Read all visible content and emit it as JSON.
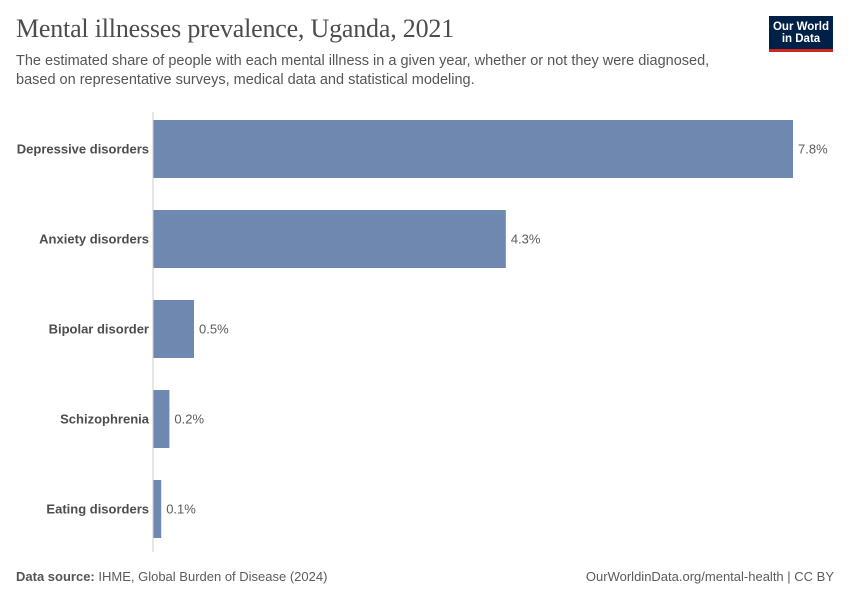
{
  "header": {
    "title": "Mental illnesses prevalence, Uganda, 2021",
    "subtitle": "The estimated share of people with each mental illness in a given year, whether or not they were diagnosed, based on representative surveys, medical data and statistical modeling."
  },
  "logo": {
    "line1": "Our World",
    "line2": "in Data"
  },
  "footer": {
    "source_label": "Data source:",
    "source_text": "IHME, Global Burden of Disease (2024)",
    "link_text": "OurWorldinData.org/mental-health | CC BY"
  },
  "colors": {
    "bar": "#6f88b0",
    "axis": "#cccccc",
    "label": "#4d4d4d",
    "value_label": "#5b5b5b"
  },
  "chart_data": {
    "type": "bar",
    "orientation": "horizontal",
    "categories": [
      "Depressive disorders",
      "Anxiety disorders",
      "Bipolar disorder",
      "Schizophrenia",
      "Eating disorders"
    ],
    "values": [
      7.8,
      4.3,
      0.5,
      0.2,
      0.1
    ],
    "value_labels": [
      "7.8%",
      "4.3%",
      "0.5%",
      "0.2%",
      "0.1%"
    ],
    "unit": "%",
    "xlim": [
      0,
      7.8
    ],
    "grid": false
  }
}
